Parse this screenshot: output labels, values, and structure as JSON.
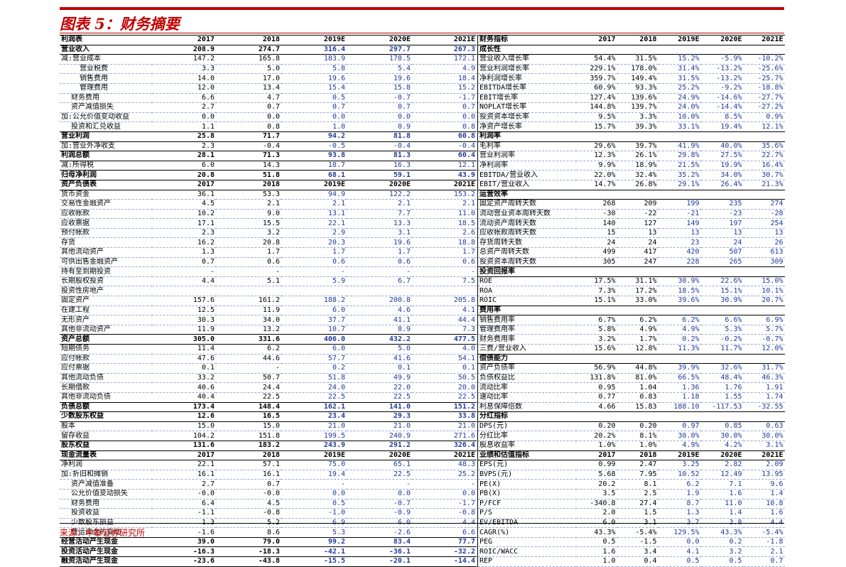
{
  "title": "图表 5：财务摘要",
  "source": "来源：中泰证券研究所",
  "left": [
    {
      "t": "h",
      "c": [
        "利润表",
        "2017",
        "2018",
        "2019E",
        "2020E",
        "2021E"
      ]
    },
    {
      "t": "b",
      "c": [
        "营业收入",
        "208.9",
        "274.7",
        "316.4",
        "297.7",
        "267.3"
      ]
    },
    {
      "t": "n",
      "c": [
        "减:营业成本",
        "147.2",
        "165.8",
        "183.9",
        "178.5",
        "172.1"
      ]
    },
    {
      "t": "i2",
      "c": [
        "营业税费",
        "3.3",
        "5.0",
        "5.8",
        "5.4",
        "4.9"
      ]
    },
    {
      "t": "i2",
      "c": [
        "销售费用",
        "14.0",
        "17.0",
        "19.6",
        "19.6",
        "18.4"
      ]
    },
    {
      "t": "i2",
      "c": [
        "管理费用",
        "12.0",
        "13.4",
        "15.4",
        "15.8",
        "15.2"
      ]
    },
    {
      "t": "i1",
      "c": [
        "财务费用",
        "6.6",
        "4.7",
        "0.5",
        "-0.7",
        "-1.7"
      ]
    },
    {
      "t": "i1",
      "c": [
        "资产减值损失",
        "2.7",
        "0.7",
        "0.7",
        "0.7",
        "0.7"
      ]
    },
    {
      "t": "n",
      "c": [
        "加:公允价值变动收益",
        "0.0",
        "0.0",
        "0.0",
        "0.0",
        "0.0"
      ]
    },
    {
      "t": "i1",
      "c": [
        "投资和汇兑收益",
        "1.1",
        "0.8",
        "1.0",
        "0.9",
        "0.8"
      ]
    },
    {
      "t": "b",
      "c": [
        "营业利润",
        "25.8",
        "71.7",
        "94.2",
        "81.8",
        "60.8"
      ]
    },
    {
      "t": "n",
      "c": [
        "加:营业外净收支",
        "2.3",
        "-0.4",
        "-0.5",
        "-0.4",
        "-0.4"
      ]
    },
    {
      "t": "b",
      "c": [
        "利润总额",
        "28.1",
        "71.3",
        "93.8",
        "81.3",
        "60.4"
      ]
    },
    {
      "t": "n",
      "c": [
        "减:所得税",
        "6.0",
        "14.3",
        "18.7",
        "16.3",
        "12.1"
      ]
    },
    {
      "t": "b",
      "c": [
        "归母净利润",
        "20.8",
        "51.8",
        "68.1",
        "59.1",
        "43.9"
      ]
    },
    {
      "t": "h",
      "c": [
        "资产负债表",
        "2017",
        "2018",
        "2019E",
        "2020E",
        "2021E"
      ]
    },
    {
      "t": "n",
      "c": [
        "货币资金",
        "36.1",
        "53.3",
        "94.9",
        "122.2",
        "153.2"
      ]
    },
    {
      "t": "n",
      "c": [
        "交易性金融资产",
        "4.5",
        "2.1",
        "2.1",
        "2.1",
        "2.1"
      ]
    },
    {
      "t": "n",
      "c": [
        "应收帐款",
        "10.2",
        "9.0",
        "13.1",
        "7.7",
        "11.0"
      ]
    },
    {
      "t": "n",
      "c": [
        "应收票据",
        "17.1",
        "15.5",
        "22.1",
        "13.3",
        "18.5"
      ]
    },
    {
      "t": "n",
      "c": [
        "预付帐款",
        "2.3",
        "3.2",
        "2.9",
        "3.1",
        "2.6"
      ]
    },
    {
      "t": "n",
      "c": [
        "存货",
        "16.2",
        "20.8",
        "20.3",
        "19.6",
        "18.8"
      ]
    },
    {
      "t": "n",
      "c": [
        "其他流动资产",
        "1.3",
        "1.7",
        "1.7",
        "1.7",
        "1.7"
      ]
    },
    {
      "t": "n",
      "c": [
        "可供出售金融资产",
        "0.7",
        "0.6",
        "0.6",
        "0.6",
        "0.6"
      ]
    },
    {
      "t": "n",
      "c": [
        "持有至到期投资",
        "-",
        "-",
        "-",
        "-",
        "-"
      ]
    },
    {
      "t": "n",
      "c": [
        "长期股权投资",
        "4.4",
        "5.1",
        "5.9",
        "6.7",
        "7.5"
      ]
    },
    {
      "t": "n",
      "c": [
        "投资性房地产",
        "",
        "",
        "",
        "",
        ""
      ]
    },
    {
      "t": "n",
      "c": [
        "固定资产",
        "157.6",
        "161.2",
        "188.2",
        "200.8",
        "205.8"
      ]
    },
    {
      "t": "n",
      "c": [
        "在建工程",
        "12.5",
        "11.9",
        "6.0",
        "4.6",
        "4.1"
      ]
    },
    {
      "t": "n",
      "c": [
        "无形资产",
        "30.3",
        "34.0",
        "37.7",
        "41.1",
        "44.4"
      ]
    },
    {
      "t": "n",
      "c": [
        "其他非流动资产",
        "11.9",
        "13.2",
        "10.7",
        "8.9",
        "7.3"
      ]
    },
    {
      "t": "b",
      "c": [
        "资产总额",
        "305.0",
        "331.6",
        "406.0",
        "432.2",
        "477.5"
      ]
    },
    {
      "t": "n",
      "c": [
        "短期债务",
        "11.4",
        "6.2",
        "6.0",
        "5.0",
        "4.0"
      ]
    },
    {
      "t": "n",
      "c": [
        "应付帐款",
        "47.6",
        "44.6",
        "57.7",
        "41.6",
        "54.1"
      ]
    },
    {
      "t": "n",
      "c": [
        "应付票据",
        "0.1",
        "-",
        "0.2",
        "0.1",
        "0.1"
      ]
    },
    {
      "t": "n",
      "c": [
        "其他流动负债",
        "33.2",
        "50.7",
        "51.8",
        "49.9",
        "50.5"
      ]
    },
    {
      "t": "n",
      "c": [
        "长期借款",
        "40.6",
        "24.4",
        "24.0",
        "22.0",
        "20.0"
      ]
    },
    {
      "t": "n",
      "c": [
        "其他非流动负债",
        "40.4",
        "22.5",
        "22.5",
        "22.5",
        "22.5"
      ]
    },
    {
      "t": "b",
      "c": [
        "负债总额",
        "173.4",
        "148.4",
        "162.1",
        "141.0",
        "151.2"
      ]
    },
    {
      "t": "b",
      "c": [
        "少数股东权益",
        "12.6",
        "16.5",
        "23.4",
        "29.3",
        "33.8"
      ]
    },
    {
      "t": "n",
      "c": [
        "股本",
        "15.0",
        "15.0",
        "21.0",
        "21.0",
        "21.0"
      ]
    },
    {
      "t": "n",
      "c": [
        "留存收益",
        "104.2",
        "151.8",
        "199.5",
        "240.9",
        "271.6"
      ]
    },
    {
      "t": "b",
      "c": [
        "股东权益",
        "131.6",
        "183.2",
        "243.9",
        "291.2",
        "326.4"
      ]
    },
    {
      "t": "h",
      "c": [
        "现金流量表",
        "2017",
        "2018",
        "2019E",
        "2020E",
        "2021E"
      ]
    },
    {
      "t": "n",
      "c": [
        "净利润",
        "22.1",
        "57.1",
        "75.0",
        "65.1",
        "48.3"
      ]
    },
    {
      "t": "n",
      "c": [
        "加:折旧和摊销",
        "16.1",
        "16.1",
        "19.4",
        "22.5",
        "25.2"
      ]
    },
    {
      "t": "i1",
      "c": [
        "资产减值准备",
        "2.7",
        "0.7",
        "-",
        "-",
        "-"
      ]
    },
    {
      "t": "i1",
      "c": [
        "公允价值变动损失",
        "-0.0",
        "-0.0",
        "0.0",
        "0.0",
        "0.0"
      ]
    },
    {
      "t": "i1",
      "c": [
        "财务费用",
        "6.4",
        "4.5",
        "0.5",
        "-0.7",
        "-1.7"
      ]
    },
    {
      "t": "i1",
      "c": [
        "投资收益",
        "-1.1",
        "-0.8",
        "-1.0",
        "-0.9",
        "-0.8"
      ]
    },
    {
      "t": "i1",
      "c": [
        "少数股东损益",
        "1.3",
        "5.2",
        "6.9",
        "6.0",
        "4.4"
      ]
    },
    {
      "t": "i1",
      "c": [
        "营运资金的变动",
        "-1.6",
        "8.6",
        "5.3",
        "-2.6",
        "6.6"
      ]
    },
    {
      "t": "b",
      "c": [
        "经营活动产生现金",
        "39.0",
        "79.0",
        "99.2",
        "83.4",
        "77.7"
      ]
    },
    {
      "t": "b",
      "c": [
        "投资活动产生现金",
        "-16.3",
        "-18.3",
        "-42.1",
        "-36.1",
        "-32.2"
      ]
    },
    {
      "t": "b",
      "c": [
        "融资活动产生现金",
        "-23.6",
        "-43.8",
        "-15.5",
        "-20.1",
        "-14.4"
      ]
    }
  ],
  "right": [
    {
      "t": "h",
      "c": [
        "财务指标",
        "2017",
        "2018",
        "2019E",
        "2020E",
        "2021E"
      ]
    },
    {
      "t": "b",
      "c": [
        "成长性",
        "",
        "",
        "",
        "",
        ""
      ]
    },
    {
      "t": "n",
      "c": [
        "营业收入增长率",
        "54.4%",
        "31.5%",
        "15.2%",
        "-5.9%",
        "-10.2%"
      ]
    },
    {
      "t": "n",
      "c": [
        "营业利润增长率",
        "229.1%",
        "178.0%",
        "31.4%",
        "-13.2%",
        "-25.6%"
      ]
    },
    {
      "t": "n",
      "c": [
        "净利润增长率",
        "359.7%",
        "149.4%",
        "31.5%",
        "-13.2%",
        "-25.7%"
      ]
    },
    {
      "t": "n",
      "c": [
        "EBITDA增长率",
        "60.9%",
        "93.3%",
        "25.2%",
        "-9.2%",
        "-18.8%"
      ]
    },
    {
      "t": "n",
      "c": [
        "EBIT增长率",
        "127.4%",
        "139.6%",
        "24.9%",
        "-14.6%",
        "-27.7%"
      ]
    },
    {
      "t": "n",
      "c": [
        "NOPLAT增长率",
        "144.8%",
        "139.7%",
        "24.0%",
        "-14.4%",
        "-27.2%"
      ]
    },
    {
      "t": "n",
      "c": [
        "投资资本增长率",
        "9.5%",
        "3.3%",
        "10.0%",
        "8.5%",
        "0.9%"
      ]
    },
    {
      "t": "n",
      "c": [
        "净资产增长率",
        "15.7%",
        "39.3%",
        "33.1%",
        "19.4%",
        "12.1%"
      ]
    },
    {
      "t": "b",
      "c": [
        "利润率",
        "",
        "",
        "",
        "",
        ""
      ]
    },
    {
      "t": "n",
      "c": [
        "毛利率",
        "29.6%",
        "39.7%",
        "41.9%",
        "40.0%",
        "35.6%"
      ]
    },
    {
      "t": "n",
      "c": [
        "营业利润率",
        "12.3%",
        "26.1%",
        "29.8%",
        "27.5%",
        "22.7%"
      ]
    },
    {
      "t": "n",
      "c": [
        "净利润率",
        "9.9%",
        "18.9%",
        "21.5%",
        "19.9%",
        "16.4%"
      ]
    },
    {
      "t": "n",
      "c": [
        "EBITDA/营业收入",
        "22.0%",
        "32.4%",
        "35.2%",
        "34.0%",
        "30.7%"
      ]
    },
    {
      "t": "n",
      "c": [
        "EBIT/营业收入",
        "14.7%",
        "26.8%",
        "29.1%",
        "26.4%",
        "21.3%"
      ]
    },
    {
      "t": "b",
      "c": [
        "运营效率",
        "",
        "",
        "",
        "",
        ""
      ]
    },
    {
      "t": "n",
      "c": [
        "固定资产周转天数",
        "268",
        "209",
        "199",
        "235",
        "274"
      ]
    },
    {
      "t": "n",
      "c": [
        "流动营业资本周转天数",
        "-30",
        "-22",
        "-21",
        "-23",
        "-28"
      ]
    },
    {
      "t": "n",
      "c": [
        "流动资产周转天数",
        "140",
        "127",
        "149",
        "197",
        "254"
      ]
    },
    {
      "t": "n",
      "c": [
        "应收帐款周转天数",
        "15",
        "13",
        "13",
        "13",
        "13"
      ]
    },
    {
      "t": "n",
      "c": [
        "存货周转天数",
        "24",
        "24",
        "23",
        "24",
        "26"
      ]
    },
    {
      "t": "n",
      "c": [
        "总资产周转天数",
        "499",
        "417",
        "420",
        "507",
        "613"
      ]
    },
    {
      "t": "n",
      "c": [
        "投资资本周转天数",
        "305",
        "247",
        "228",
        "265",
        "309"
      ]
    },
    {
      "t": "b",
      "c": [
        "投资回报率",
        "",
        "",
        "",
        "",
        ""
      ]
    },
    {
      "t": "n",
      "c": [
        "ROE",
        "17.5%",
        "31.1%",
        "30.9%",
        "22.6%",
        "15.0%"
      ]
    },
    {
      "t": "n",
      "c": [
        "ROA",
        "7.3%",
        "17.2%",
        "18.5%",
        "15.1%",
        "10.1%"
      ]
    },
    {
      "t": "n",
      "c": [
        "ROIC",
        "15.1%",
        "33.0%",
        "39.6%",
        "30.9%",
        "20.7%"
      ]
    },
    {
      "t": "b",
      "c": [
        "费用率",
        "",
        "",
        "",
        "",
        ""
      ]
    },
    {
      "t": "n",
      "c": [
        "销售费用率",
        "6.7%",
        "6.2%",
        "6.2%",
        "6.6%",
        "6.9%"
      ]
    },
    {
      "t": "n",
      "c": [
        "管理费用率",
        "5.8%",
        "4.9%",
        "4.9%",
        "5.3%",
        "5.7%"
      ]
    },
    {
      "t": "n",
      "c": [
        "财务费用率",
        "3.2%",
        "1.7%",
        "0.2%",
        "-0.2%",
        "-0.7%"
      ]
    },
    {
      "t": "n",
      "c": [
        "三费/营业收入",
        "15.6%",
        "12.8%",
        "11.3%",
        "11.7%",
        "12.0%"
      ]
    },
    {
      "t": "b",
      "c": [
        "偿债能力",
        "",
        "",
        "",
        "",
        ""
      ]
    },
    {
      "t": "n",
      "c": [
        "资产负债率",
        "56.9%",
        "44.8%",
        "39.9%",
        "32.6%",
        "31.7%"
      ]
    },
    {
      "t": "n",
      "c": [
        "负债权益比",
        "131.8%",
        "81.0%",
        "66.5%",
        "48.4%",
        "46.3%"
      ]
    },
    {
      "t": "n",
      "c": [
        "流动比率",
        "0.95",
        "1.04",
        "1.36",
        "1.76",
        "1.91"
      ]
    },
    {
      "t": "n",
      "c": [
        "速动比率",
        "0.77",
        "0.83",
        "1.18",
        "1.55",
        "1.74"
      ]
    },
    {
      "t": "n",
      "c": [
        "利息保障倍数",
        "4.66",
        "15.83",
        "188.10",
        "-117.53",
        "-32.55"
      ]
    },
    {
      "t": "b",
      "c": [
        "分红指标",
        "",
        "",
        "",
        "",
        ""
      ]
    },
    {
      "t": "n",
      "c": [
        "DPS(元)",
        "0.20",
        "0.20",
        "0.97",
        "0.85",
        "0.63"
      ]
    },
    {
      "t": "n",
      "c": [
        "分红比率",
        "20.2%",
        "8.1%",
        "30.0%",
        "30.0%",
        "30.0%"
      ]
    },
    {
      "t": "n",
      "c": [
        "股息收益率",
        "1.0%",
        "1.0%",
        "4.9%",
        "4.2%",
        "3.1%"
      ]
    },
    {
      "t": "h",
      "c": [
        "业绩和估值指标",
        "2017",
        "2018",
        "2019E",
        "2020E",
        "2021E"
      ]
    },
    {
      "t": "n",
      "c": [
        "EPS(元)",
        "0.99",
        "2.47",
        "3.25",
        "2.82",
        "2.09"
      ]
    },
    {
      "t": "n",
      "c": [
        "BVPS(元)",
        "5.68",
        "7.95",
        "10.52",
        "12.49",
        "13.95"
      ]
    },
    {
      "t": "n",
      "c": [
        "PE(X)",
        "20.2",
        "8.1",
        "6.2",
        "7.1",
        "9.6"
      ]
    },
    {
      "t": "n",
      "c": [
        "PB(X)",
        "3.5",
        "2.5",
        "1.9",
        "1.6",
        "1.4"
      ]
    },
    {
      "t": "n",
      "c": [
        "P/FCF",
        "-340.8",
        "27.4",
        "8.7",
        "11.0",
        "10.8"
      ]
    },
    {
      "t": "n",
      "c": [
        "P/S",
        "2.0",
        "1.5",
        "1.3",
        "1.4",
        "1.6"
      ]
    },
    {
      "t": "n",
      "c": [
        "EV/EBITDA",
        "6.0",
        "3.1",
        "3.7",
        "3.8",
        "4.4"
      ]
    },
    {
      "t": "n",
      "c": [
        "CAGR(%)",
        "43.3%",
        "-5.4%",
        "129.5%",
        "43.3%",
        "-5.4%"
      ]
    },
    {
      "t": "n",
      "c": [
        "PEG",
        "0.5",
        "-1.5",
        "0.0",
        "0.2",
        "-1.8"
      ]
    },
    {
      "t": "n",
      "c": [
        "ROIC/WACC",
        "1.6",
        "3.4",
        "4.1",
        "3.2",
        "2.1"
      ]
    },
    {
      "t": "n",
      "c": [
        "REP",
        "1.0",
        "0.4",
        "0.5",
        "0.5",
        "0.7"
      ]
    }
  ]
}
